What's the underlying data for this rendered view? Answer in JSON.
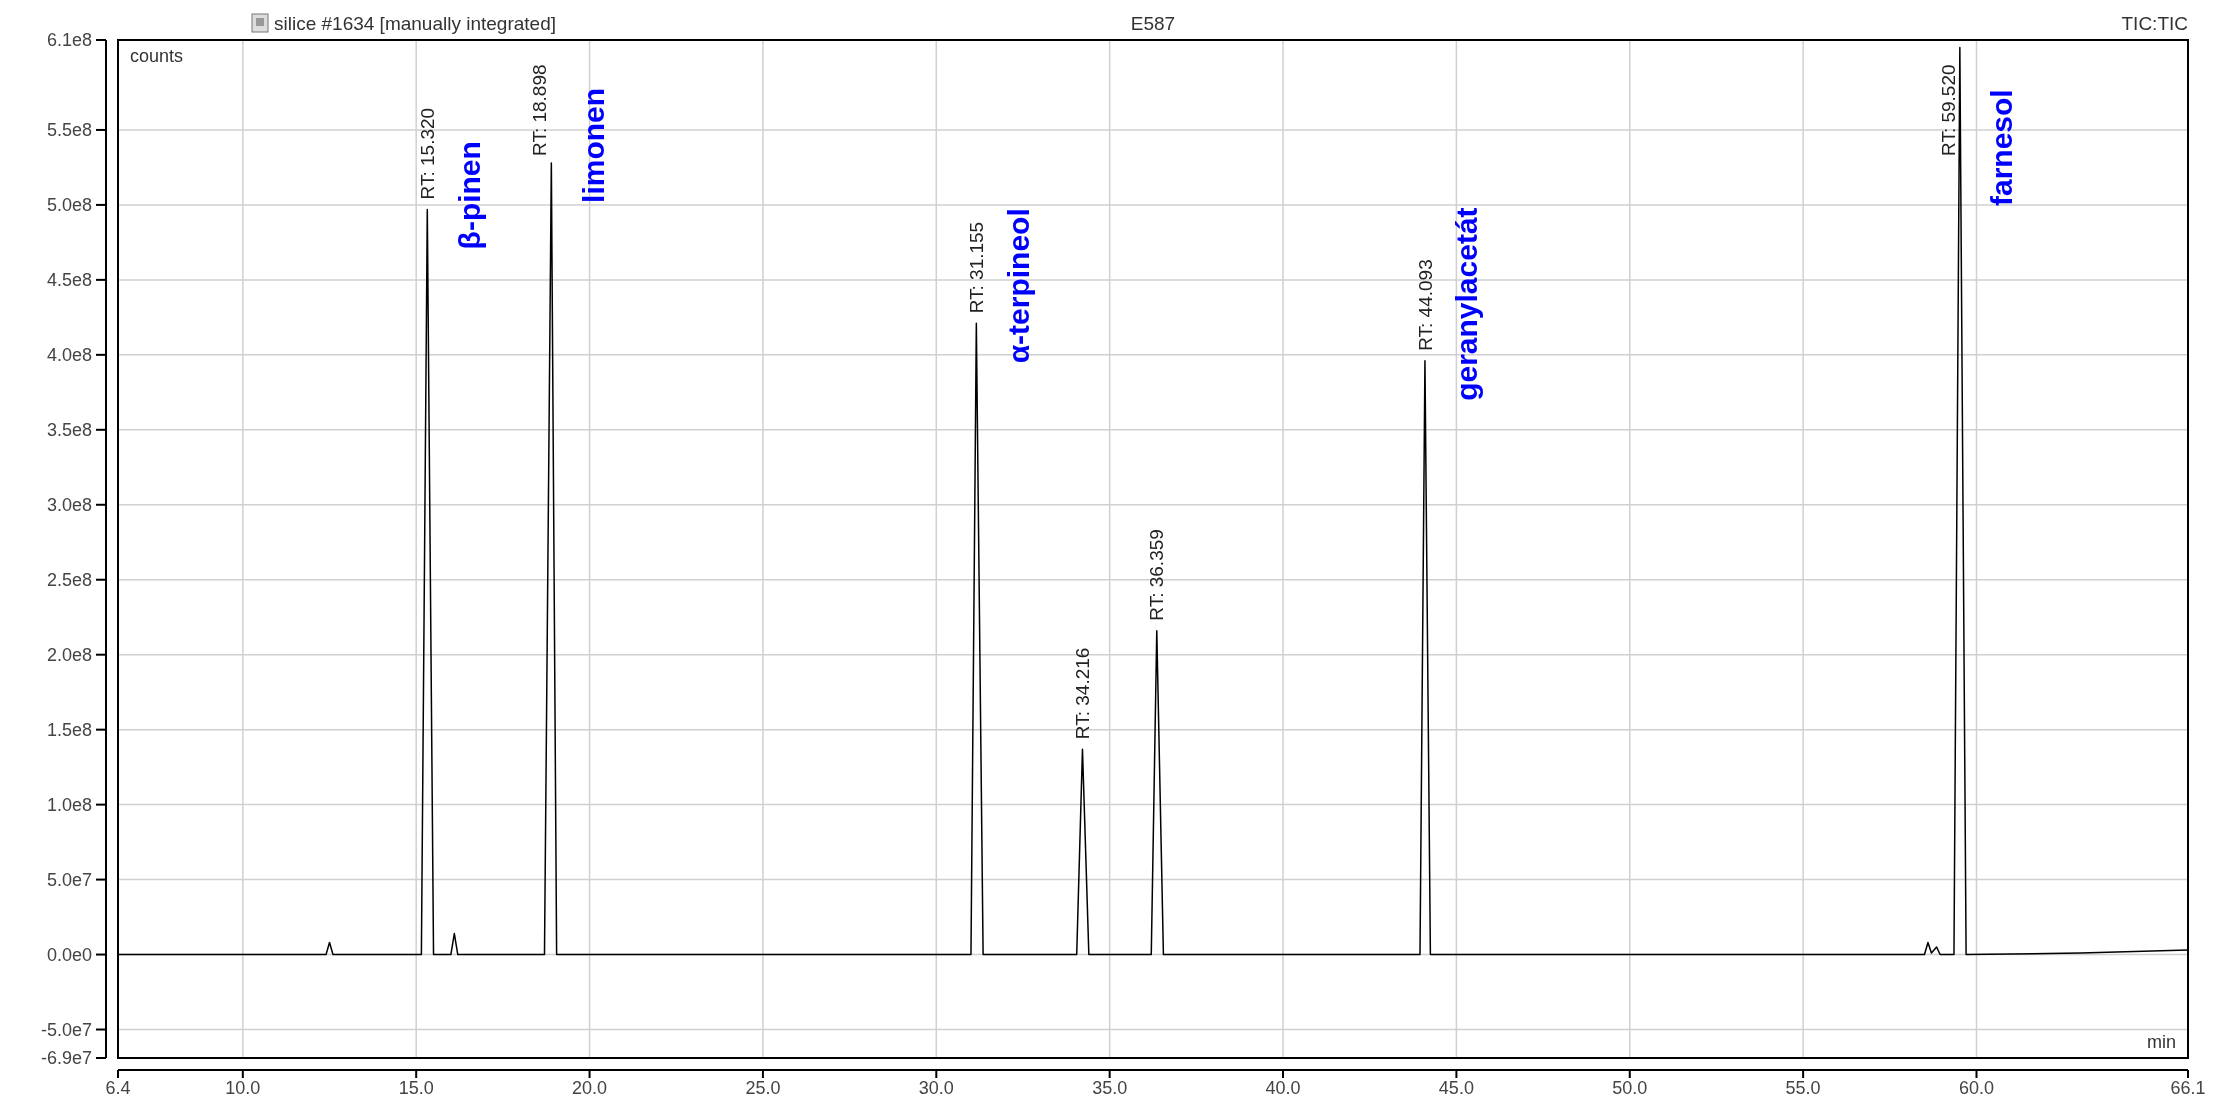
{
  "chart_data": {
    "type": "line",
    "title": "silice #1634 [manually integrated]",
    "subtitle": "E587",
    "ylabel": "counts",
    "xlabel": "min",
    "xlim": [
      6.4,
      66.1
    ],
    "xticks": [
      6.4,
      {
        "value": 10,
        "label": "10.0"
      },
      {
        "value": 15,
        "label": "15.0"
      },
      {
        "value": 20,
        "label": "20.0"
      },
      {
        "value": 25,
        "label": "25.0"
      },
      {
        "value": 30,
        "label": "30.0"
      },
      {
        "value": 35,
        "label": "35.0"
      },
      {
        "value": 40,
        "label": "40.0"
      },
      {
        "value": 45,
        "label": "45.0"
      },
      {
        "value": 50,
        "label": "50.0"
      },
      {
        "value": 55,
        "label": "55.0"
      },
      {
        "value": 60,
        "label": "60.0"
      },
      66.1
    ],
    "ylim": [
      -69000000,
      610000000
    ],
    "yticks": [
      {
        "value": -69000000,
        "label": "-6.9e7"
      },
      {
        "value": -50000000,
        "label": "-5.0e7"
      },
      {
        "value": 0,
        "label": "0.0e0"
      },
      {
        "value": 50000000,
        "label": "5.0e7"
      },
      {
        "value": 100000000,
        "label": "1.0e8"
      },
      {
        "value": 150000000,
        "label": "1.5e8"
      },
      {
        "value": 200000000,
        "label": "2.0e8"
      },
      {
        "value": 250000000,
        "label": "2.5e8"
      },
      {
        "value": 300000000,
        "label": "3.0e8"
      },
      {
        "value": 350000000,
        "label": "3.5e8"
      },
      {
        "value": 400000000,
        "label": "4.0e8"
      },
      {
        "value": 450000000,
        "label": "4.5e8"
      },
      {
        "value": 500000000,
        "label": "5.0e8"
      },
      {
        "value": 550000000,
        "label": "5.5e8"
      },
      {
        "value": 610000000,
        "label": "6.1e8"
      }
    ],
    "grid": true,
    "marker": "none",
    "line_style": "solid",
    "series": [
      {
        "color": "#000000",
        "x": [
          6.4,
          12.4,
          12.5,
          12.6,
          15.15,
          15.32,
          15.5,
          16.0,
          16.1,
          16.2,
          18.7,
          18.898,
          19.05,
          31.0,
          31.155,
          31.35,
          34.05,
          34.216,
          34.4,
          36.2,
          36.359,
          36.55,
          43.95,
          44.093,
          44.25,
          58.5,
          58.6,
          58.7,
          58.85,
          58.95,
          59.35,
          59.52,
          59.7,
          63.0,
          66.1
        ],
        "values": [
          0,
          0,
          8000000,
          0,
          0,
          497000000,
          0,
          0,
          14000000,
          0,
          0,
          528000000,
          0,
          0,
          421000000,
          0,
          0,
          137000000,
          0,
          0,
          216000000,
          0,
          0,
          396000000,
          0,
          0,
          8000000,
          1000000,
          5000000,
          0,
          0,
          605000000,
          0,
          1000000,
          3000000
        ]
      }
    ],
    "annotations": [
      {
        "text": "RT: 15.320",
        "x": 15.32,
        "y": 497000000
      },
      {
        "text": "RT: 18.898",
        "x": 18.898,
        "y": 528000000
      },
      {
        "text": "RT: 31.155",
        "x": 31.155,
        "y": 421000000
      },
      {
        "text": "RT: 34.216",
        "x": 34.216,
        "y": 137000000
      },
      {
        "text": "RT: 36.359",
        "x": 36.359,
        "y": 216000000
      },
      {
        "text": "RT: 44.093",
        "x": 44.093,
        "y": 396000000
      },
      {
        "text": "RT: 59.520",
        "x": 59.52,
        "y": 605000000
      },
      {
        "text": "β-pinen",
        "x": 15.32,
        "y": 497000000
      },
      {
        "text": "limonen",
        "x": 18.898,
        "y": 528000000
      },
      {
        "text": "α-terpineol",
        "x": 31.155,
        "y": 421000000
      },
      {
        "text": "geranylacetát",
        "x": 44.093,
        "y": 396000000
      },
      {
        "text": "farnesol",
        "x": 59.52,
        "y": 605000000
      },
      "TIC:TIC"
    ]
  }
}
